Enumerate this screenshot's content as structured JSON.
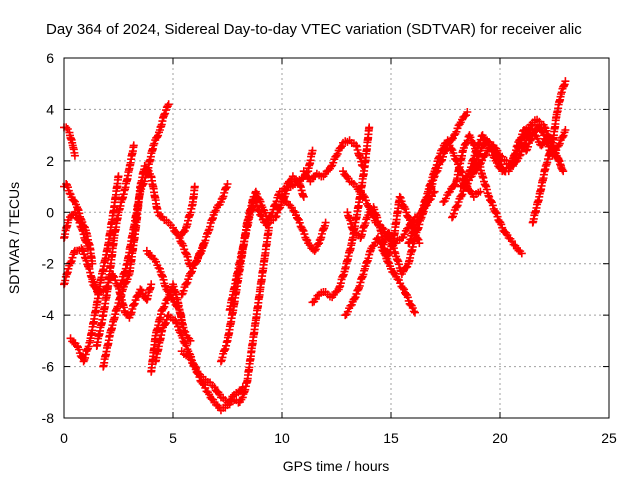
{
  "chart_data": {
    "type": "scatter",
    "title": "Day 364 of 2024, Sidereal Day-to-day VTEC variation (SDTVAR) for receiver alic",
    "xlabel": "GPS time / hours",
    "ylabel": "SDTVAR / TECUs",
    "xlim": [
      0,
      25
    ],
    "ylim": [
      -8,
      6
    ],
    "xticks": [
      0,
      5,
      10,
      15,
      20,
      25
    ],
    "yticks": [
      -8,
      -6,
      -4,
      -2,
      0,
      2,
      4,
      6
    ],
    "xtick_labels": [
      "0",
      "5",
      "10",
      "15",
      "20",
      "25"
    ],
    "ytick_labels": [
      "-8",
      "-6",
      "-4",
      "-2",
      "0",
      "2",
      "4",
      "6"
    ],
    "grid": true,
    "marker": "+",
    "color": "#ff0000",
    "series": [
      {
        "name": "trace-1",
        "x": [
          0.0,
          0.1,
          0.25,
          0.4,
          0.5
        ],
        "y": [
          3.3,
          3.3,
          3.1,
          2.6,
          2.2
        ]
      },
      {
        "name": "trace-2",
        "x": [
          0.0,
          0.1,
          0.3,
          0.6,
          0.8,
          1.0,
          1.2,
          1.3
        ],
        "y": [
          1.0,
          1.1,
          0.7,
          0.2,
          -0.3,
          -0.7,
          -1.4,
          -2.0
        ]
      },
      {
        "name": "trace-3",
        "x": [
          0.0,
          0.2,
          0.5,
          0.8,
          1.0,
          1.3,
          1.6
        ],
        "y": [
          -2.8,
          -2.2,
          -1.5,
          -1.4,
          -1.8,
          -2.6,
          -3.2
        ]
      },
      {
        "name": "trace-4",
        "x": [
          0.0,
          0.2,
          0.5,
          0.8,
          1.1
        ],
        "y": [
          -1.0,
          -0.3,
          0.0,
          -0.6,
          -1.4
        ]
      },
      {
        "name": "trace-5",
        "x": [
          0.3,
          0.6,
          0.9,
          1.2,
          1.5,
          1.7,
          2.0,
          2.3,
          2.5
        ],
        "y": [
          -4.9,
          -5.2,
          -5.8,
          -5.0,
          -3.6,
          -2.6,
          -1.4,
          0.2,
          1.4
        ]
      },
      {
        "name": "trace-6",
        "x": [
          1.3,
          1.6,
          1.9,
          2.2,
          2.5,
          2.8,
          3.0,
          3.2,
          3.5,
          3.8,
          4.0
        ],
        "y": [
          -2.7,
          -3.2,
          -3.0,
          -2.4,
          -2.9,
          -3.9,
          -4.1,
          -3.6,
          -3.0,
          -3.4,
          -2.8
        ]
      },
      {
        "name": "trace-7",
        "x": [
          1.5,
          1.8,
          2.0,
          2.3,
          2.5,
          2.8,
          3.0,
          3.2
        ],
        "y": [
          -5.2,
          -4.0,
          -3.0,
          -1.0,
          0.0,
          0.9,
          1.7,
          2.6
        ]
      },
      {
        "name": "trace-8",
        "x": [
          1.8,
          2.1,
          2.4,
          2.7,
          3.0,
          3.3,
          3.5,
          3.7,
          4.0,
          4.3,
          4.6,
          4.9
        ],
        "y": [
          -6.0,
          -4.8,
          -3.8,
          -3.0,
          -2.4,
          -0.6,
          1.0,
          1.8,
          1.4,
          0.0,
          -0.3,
          -0.5
        ]
      },
      {
        "name": "trace-9",
        "x": [
          2.6,
          2.9,
          3.2,
          3.5,
          3.8,
          4.1,
          4.4,
          4.6,
          4.8
        ],
        "y": [
          -2.8,
          -2.0,
          -0.6,
          0.8,
          1.5,
          2.6,
          3.2,
          3.8,
          4.2
        ]
      },
      {
        "name": "trace-10",
        "x": [
          3.8,
          4.1,
          4.4,
          4.7,
          5.0,
          5.3,
          5.5,
          5.8
        ],
        "y": [
          -1.5,
          -1.8,
          -2.2,
          -3.0,
          -3.4,
          -3.8,
          -4.6,
          -5.0
        ]
      },
      {
        "name": "trace-11",
        "x": [
          4.0,
          4.2,
          4.5,
          4.8,
          5.0,
          5.2,
          5.4
        ],
        "y": [
          -6.2,
          -4.8,
          -3.8,
          -3.3,
          -2.8,
          -3.4,
          -4.2
        ]
      },
      {
        "name": "trace-12",
        "x": [
          4.2,
          4.5,
          4.8,
          5.1,
          5.4,
          5.7,
          6.0,
          6.3,
          6.6,
          6.9,
          7.2,
          7.5,
          7.8,
          8.0,
          8.2
        ],
        "y": [
          -5.8,
          -4.6,
          -4.0,
          -4.2,
          -4.8,
          -5.4,
          -6.0,
          -6.4,
          -6.6,
          -6.8,
          -7.2,
          -7.4,
          -7.1,
          -7.0,
          -6.8
        ]
      },
      {
        "name": "trace-13",
        "x": [
          5.0,
          5.3,
          5.6,
          5.9,
          6.0
        ],
        "y": [
          -0.6,
          -1.0,
          -0.6,
          0.3,
          1.0
        ]
      },
      {
        "name": "trace-14",
        "x": [
          5.4,
          5.7,
          6.0,
          6.3,
          6.6,
          6.9,
          7.2,
          7.5,
          7.8,
          8.0,
          8.2,
          8.4,
          8.6,
          8.8,
          9.0,
          9.2,
          9.4
        ],
        "y": [
          -5.4,
          -5.6,
          -6.0,
          -6.6,
          -7.0,
          -7.4,
          -7.7,
          -7.5,
          -7.3,
          -7.4,
          -7.2,
          -6.6,
          -5.4,
          -4.2,
          -3.0,
          -1.8,
          -0.6
        ]
      },
      {
        "name": "trace-15",
        "x": [
          5.4,
          5.7,
          6.0,
          6.3,
          6.6,
          6.9,
          7.2,
          7.5
        ],
        "y": [
          -3.2,
          -2.6,
          -2.0,
          -1.5,
          -0.8,
          0.0,
          0.4,
          1.1
        ]
      },
      {
        "name": "trace-16",
        "x": [
          5.3,
          5.6,
          5.8,
          6.1,
          6.4
        ],
        "y": [
          -1.0,
          -1.6,
          -2.1,
          -1.9,
          -1.3
        ]
      },
      {
        "name": "trace-17",
        "x": [
          7.2,
          7.5,
          7.8,
          8.1,
          8.4,
          8.7,
          9.0,
          9.3,
          9.6,
          9.9,
          10.2,
          10.5,
          10.8,
          11.0
        ],
        "y": [
          -5.8,
          -5.0,
          -3.6,
          -2.0,
          -0.4,
          0.6,
          -0.1,
          -0.5,
          0.1,
          0.8,
          1.0,
          1.4,
          1.1,
          0.6
        ]
      },
      {
        "name": "trace-18",
        "x": [
          7.6,
          7.9,
          8.2,
          8.5,
          8.8,
          9.1,
          9.4,
          9.7,
          10.0,
          10.3,
          10.6,
          10.9,
          11.2,
          11.4
        ],
        "y": [
          -3.8,
          -2.6,
          -1.4,
          -0.2,
          0.8,
          0.2,
          -0.4,
          -0.2,
          0.4,
          1.0,
          1.1,
          1.3,
          1.6,
          2.4
        ]
      },
      {
        "name": "trace-19",
        "x": [
          10.0,
          10.3,
          10.6,
          10.9,
          11.2,
          11.5,
          11.7,
          12.0
        ],
        "y": [
          0.6,
          0.3,
          0.0,
          -0.6,
          -1.2,
          -1.5,
          -1.2,
          -0.4
        ]
      },
      {
        "name": "trace-20",
        "x": [
          11.0,
          11.3,
          11.6,
          11.9,
          12.2,
          12.5,
          12.8,
          13.1,
          13.4,
          13.7
        ],
        "y": [
          1.6,
          1.2,
          1.5,
          1.4,
          1.7,
          2.2,
          2.7,
          2.8,
          2.6,
          1.8
        ]
      },
      {
        "name": "trace-21",
        "x": [
          11.4,
          11.7,
          12.0,
          12.3,
          12.6,
          12.9,
          13.2,
          13.5,
          13.8,
          14.0
        ],
        "y": [
          -3.5,
          -3.2,
          -3.1,
          -3.3,
          -3.0,
          -2.2,
          -1.2,
          0.2,
          1.8,
          3.3
        ]
      },
      {
        "name": "trace-22",
        "x": [
          12.8,
          13.1,
          13.4,
          13.7,
          14.0,
          14.3,
          14.6,
          14.9,
          15.2,
          15.5,
          15.8,
          16.1,
          16.4,
          16.7,
          17.0
        ],
        "y": [
          1.6,
          1.2,
          1.0,
          0.7,
          0.2,
          -0.4,
          -0.6,
          -1.0,
          -1.2,
          -1.0,
          -0.6,
          -0.2,
          0.0,
          0.4,
          0.8
        ]
      },
      {
        "name": "trace-23",
        "x": [
          12.9,
          13.2,
          13.5,
          13.8,
          14.1,
          14.4,
          14.7,
          15.0,
          15.3,
          15.6,
          15.9,
          16.1
        ],
        "y": [
          -4.0,
          -3.6,
          -3.0,
          -2.2,
          -1.4,
          -1.0,
          -1.6,
          -2.2,
          -2.6,
          -3.0,
          -3.6,
          -3.9
        ]
      },
      {
        "name": "trace-24",
        "x": [
          13.0,
          13.3,
          13.6,
          13.9,
          14.2,
          14.5,
          14.8,
          15.1,
          15.4,
          15.7,
          16.0,
          16.3
        ],
        "y": [
          0.0,
          -0.8,
          -1.0,
          -0.2,
          0.2,
          -0.6,
          -1.8,
          -1.2,
          0.6,
          0.0,
          -0.6,
          -1.2
        ]
      },
      {
        "name": "trace-25",
        "x": [
          14.6,
          14.9,
          15.2,
          15.5,
          15.8,
          16.1,
          16.4,
          16.7,
          17.0,
          17.3,
          17.6,
          17.9,
          18.2,
          18.5
        ],
        "y": [
          -1.2,
          -0.8,
          -1.6,
          -2.4,
          -2.0,
          -1.0,
          -0.2,
          0.6,
          1.4,
          2.0,
          2.6,
          3.0,
          3.5,
          3.9
        ]
      },
      {
        "name": "trace-26",
        "x": [
          15.8,
          16.1,
          16.4,
          16.7,
          17.0,
          17.3,
          17.6,
          17.9,
          18.2,
          18.5,
          18.8,
          19.1
        ],
        "y": [
          -1.2,
          -0.6,
          0.0,
          0.8,
          1.6,
          2.4,
          2.8,
          2.2,
          1.6,
          1.0,
          0.6,
          0.8
        ]
      },
      {
        "name": "trace-27",
        "x": [
          17.4,
          17.7,
          18.0,
          18.3,
          18.6,
          18.9,
          19.2,
          19.5,
          19.8,
          20.1,
          20.4,
          20.7,
          21.0
        ],
        "y": [
          0.4,
          0.8,
          1.2,
          2.4,
          3.0,
          2.4,
          1.4,
          0.6,
          0.0,
          -0.6,
          -1.0,
          -1.3,
          -1.6
        ]
      },
      {
        "name": "trace-28",
        "x": [
          18.2,
          18.5,
          18.8,
          19.1,
          19.4,
          19.7,
          20.0,
          20.3,
          20.6,
          20.9,
          21.2,
          21.5
        ],
        "y": [
          1.0,
          1.4,
          1.8,
          2.4,
          2.8,
          2.6,
          2.2,
          2.0,
          1.8,
          2.2,
          2.8,
          3.4
        ]
      },
      {
        "name": "trace-29",
        "x": [
          17.8,
          18.1,
          18.4,
          18.7,
          19.0,
          19.3,
          19.6,
          19.9,
          20.2,
          20.5,
          20.8,
          21.1,
          21.4,
          21.7,
          22.0,
          22.3,
          22.6,
          22.9
        ],
        "y": [
          -0.2,
          0.4,
          1.0,
          1.4,
          1.8,
          2.2,
          2.6,
          2.2,
          1.6,
          1.8,
          2.6,
          3.2,
          3.4,
          3.6,
          3.4,
          2.8,
          2.2,
          1.6
        ]
      },
      {
        "name": "trace-30",
        "x": [
          18.6,
          18.9,
          19.2,
          19.5,
          19.8,
          20.1,
          20.4,
          20.7,
          21.0,
          21.3,
          21.6,
          21.9,
          22.2,
          22.5,
          22.8
        ],
        "y": [
          1.6,
          2.4,
          3.0,
          2.6,
          2.0,
          1.6,
          1.6,
          2.2,
          2.8,
          3.2,
          3.0,
          2.6,
          3.0,
          2.4,
          1.8
        ]
      },
      {
        "name": "trace-31",
        "x": [
          21.5,
          21.8,
          22.1,
          22.4,
          22.6,
          22.8,
          23.0
        ],
        "y": [
          -0.4,
          0.6,
          1.8,
          2.6,
          3.8,
          4.6,
          5.1
        ]
      },
      {
        "name": "trace-32",
        "x": [
          21.2,
          21.5,
          21.8,
          22.1,
          22.4,
          22.7,
          23.0
        ],
        "y": [
          2.4,
          3.0,
          3.4,
          2.8,
          2.2,
          2.6,
          3.2
        ]
      }
    ]
  }
}
